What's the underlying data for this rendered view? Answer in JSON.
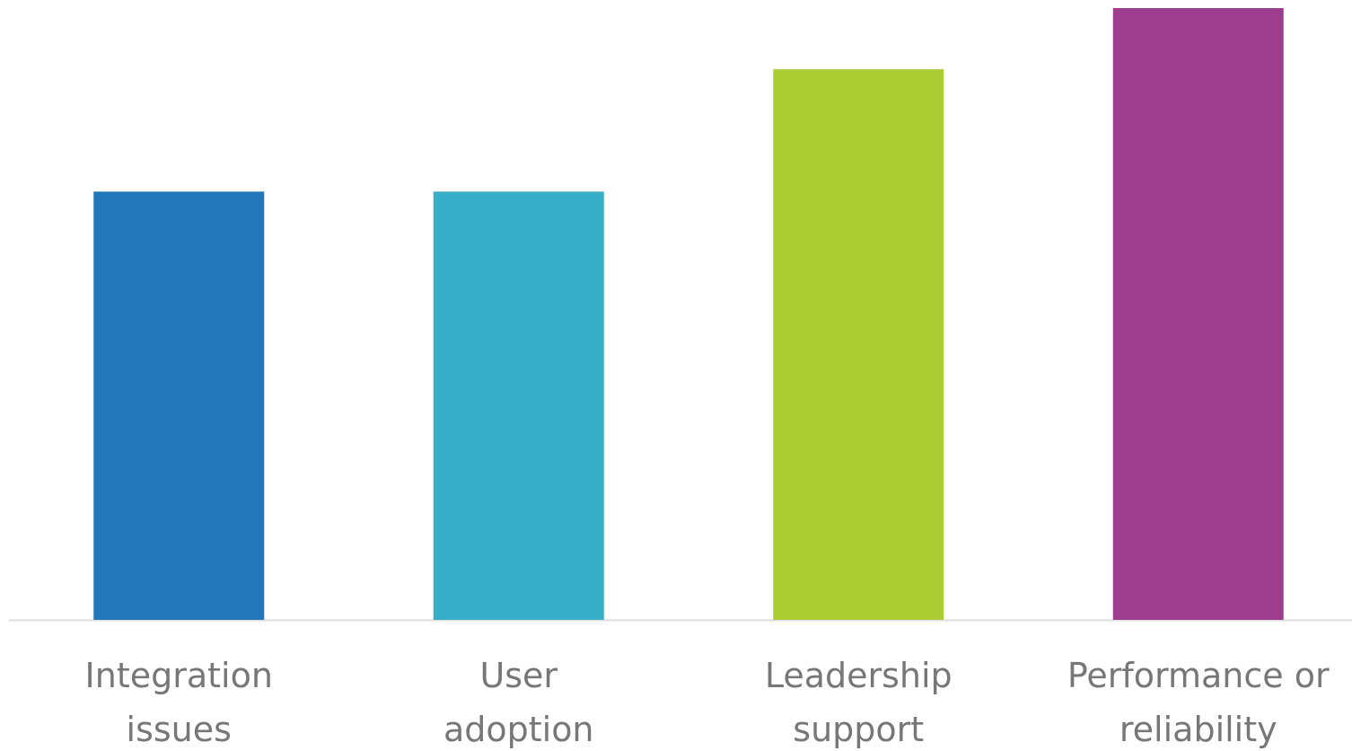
{
  "chart_data": {
    "type": "bar",
    "categories": [
      "Integration\nissues",
      "User\nadoption",
      "Leadership\nsupport",
      "Performance or\nreliability"
    ],
    "values": [
      7,
      7,
      9,
      10
    ],
    "colors": [
      "#2277bb",
      "#37aec7",
      "#adcc33",
      "#9e3d8e"
    ],
    "ylim": [
      0,
      10
    ]
  }
}
